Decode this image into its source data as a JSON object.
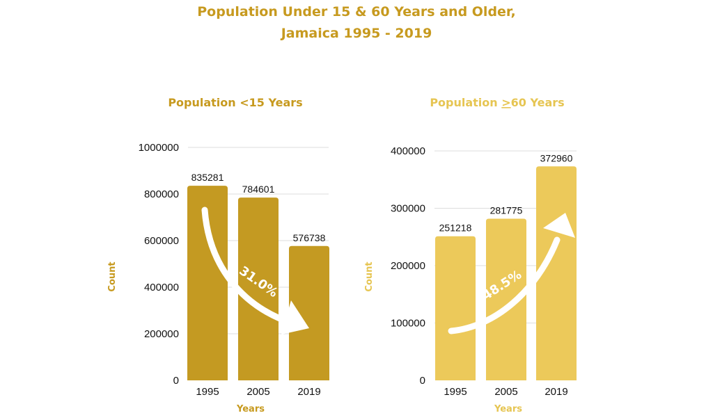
{
  "title_line1": "Population Under 15 & 60 Years and Older,",
  "title_line2": "Jamaica 1995 - 2019",
  "chart_data": [
    {
      "type": "bar",
      "title": "Population <15 Years",
      "categories": [
        "1995",
        "2005",
        "2019"
      ],
      "values": [
        835281,
        784601,
        576738
      ],
      "xlabel": "Years",
      "ylabel": "Count",
      "ylim": [
        0,
        1000000
      ],
      "yticks": [
        0,
        200000,
        400000,
        600000,
        800000,
        1000000
      ],
      "annotation": "31.0%",
      "trend": "down",
      "grid": true,
      "color": "#c49a22",
      "title_color": "#c79a1f"
    },
    {
      "type": "bar",
      "title_prefix": "Population ",
      "title_symbol": ">",
      "title_suffix": "60 Years",
      "categories": [
        "1995",
        "2005",
        "2019"
      ],
      "values": [
        251218,
        281775,
        372960
      ],
      "xlabel": "Years",
      "ylabel": "Count",
      "ylim": [
        0,
        400000
      ],
      "yticks": [
        0,
        100000,
        200000,
        300000,
        400000
      ],
      "annotation": "48.5%",
      "trend": "up",
      "grid": true,
      "color": "#ecc95a",
      "title_color": "#e6c552"
    }
  ]
}
